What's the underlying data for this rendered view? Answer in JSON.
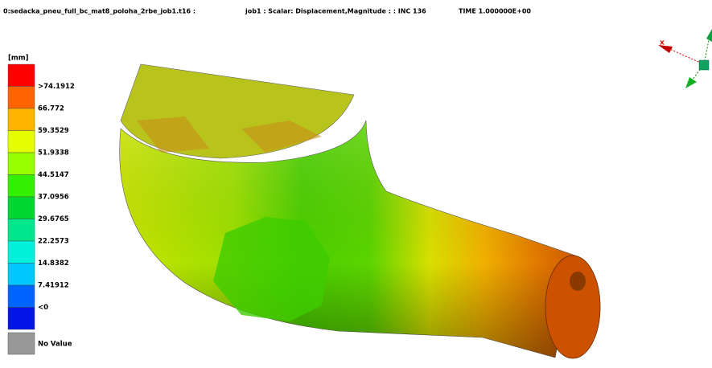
{
  "header": {
    "model": "0:sedacka_pneu_full_bc_mat8_poloha_2rbe_job1.t16  :",
    "result": "job1 : Scalar: Displacement,Magnitude : : INC 136",
    "time": "TIME 1.000000E+00"
  },
  "legend": {
    "unit": "[mm]",
    "labels": [
      ">74.1912",
      "66.772",
      "59.3529",
      "51.9338",
      "44.5147",
      "37.0956",
      "29.6765",
      "22.2573",
      "14.8382",
      "7.41912",
      "<0"
    ],
    "no_value": "No Value"
  },
  "triad": {
    "x_label": "x"
  }
}
